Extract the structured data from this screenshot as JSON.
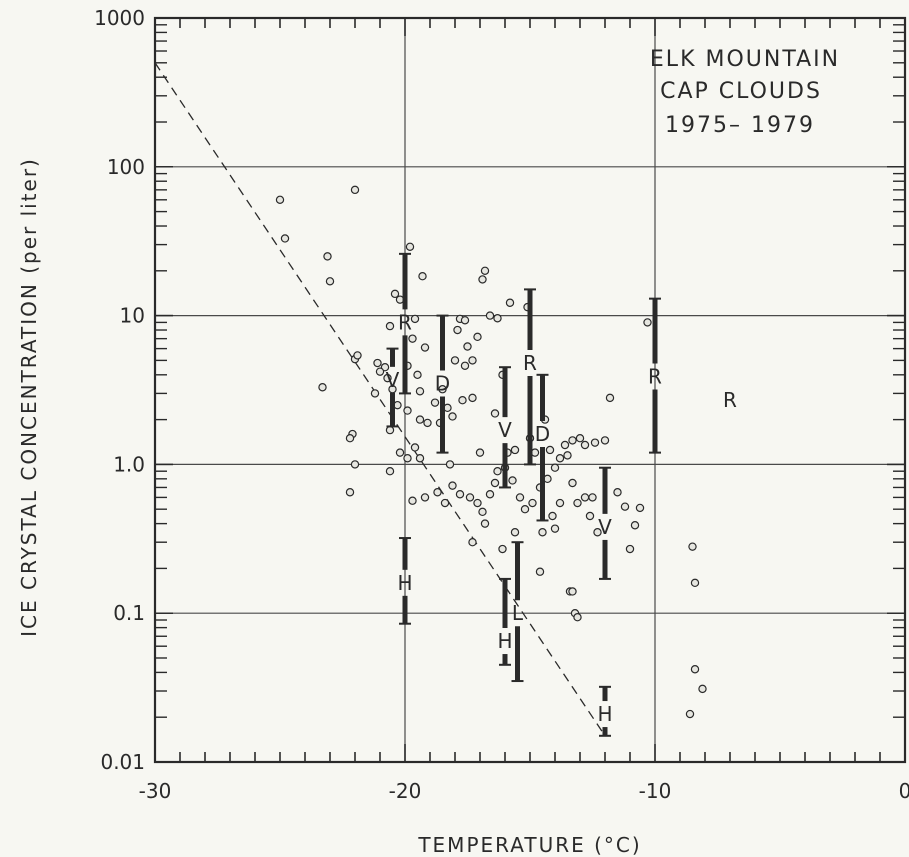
{
  "chart_data": {
    "type": "scatter",
    "annotation_lines": [
      "ELK MOUNTAIN",
      "CAP CLOUDS",
      "1975– 1979"
    ],
    "xlabel": "TEMPERATURE (°C)",
    "ylabel": "ICE CRYSTAL CONCENTRATION (per liter)",
    "xlim": [
      -30,
      0
    ],
    "ylim": [
      0.01,
      1000
    ],
    "yscale": "log",
    "grid": true,
    "x_ticks": [
      -30,
      -20,
      -10,
      0
    ],
    "x_tick_labels": [
      "-30",
      "-20",
      "-10",
      "0"
    ],
    "y_ticks": [
      0.01,
      0.1,
      1,
      10,
      100,
      1000
    ],
    "y_tick_labels": [
      "0.01",
      "0.1",
      "1.0",
      "10",
      "100",
      "1000"
    ],
    "colors": {
      "ink": "#2a2a2a",
      "grid": "#4a4a4a",
      "background": "#f7f7f2"
    },
    "reference_line": {
      "style": "dashed",
      "x": [
        -30,
        -12
      ],
      "y": [
        500,
        0.015
      ]
    },
    "range_bars": [
      {
        "letter": "R",
        "x": -20,
        "low": 3,
        "high": 26,
        "label_y": 9
      },
      {
        "letter": "V",
        "x": -20.5,
        "low": 1.8,
        "high": 6,
        "label_y": 3.7
      },
      {
        "letter": "H",
        "x": -20,
        "low": 0.085,
        "high": 0.32,
        "label_y": 0.16
      },
      {
        "letter": "D",
        "x": -18.5,
        "low": 1.2,
        "high": 10,
        "label_y": 3.5
      },
      {
        "letter": "V",
        "x": -16,
        "low": 0.7,
        "high": 4.5,
        "label_y": 1.7
      },
      {
        "letter": "H",
        "x": -16,
        "low": 0.045,
        "high": 0.17,
        "label_y": 0.065
      },
      {
        "letter": "L",
        "x": -15.5,
        "low": 0.035,
        "high": 0.3,
        "label_y": 0.1
      },
      {
        "letter": "R",
        "x": -15,
        "low": 1,
        "high": 15,
        "label_y": 4.8
      },
      {
        "letter": "D",
        "x": -14.5,
        "low": 0.42,
        "high": 4,
        "label_y": 1.6
      },
      {
        "letter": "V",
        "x": -12,
        "low": 0.17,
        "high": 0.95,
        "label_y": 0.38
      },
      {
        "letter": "H",
        "x": -12,
        "low": 0.015,
        "high": 0.032,
        "label_y": 0.021
      },
      {
        "letter": "R",
        "x": -10,
        "low": 1.2,
        "high": 13,
        "label_y": 3.9
      }
    ],
    "extra_labels": [
      {
        "letter": "R",
        "x": -7,
        "y": 2.7
      }
    ],
    "points": [
      [
        -25,
        60
      ],
      [
        -24.8,
        33
      ],
      [
        -23.1,
        25
      ],
      [
        -23,
        17
      ],
      [
        -22,
        70
      ],
      [
        -22,
        5.1
      ],
      [
        -21.9,
        5.4
      ],
      [
        -22.1,
        1.6
      ],
      [
        -22.2,
        1.5
      ],
      [
        -22,
        1.0
      ],
      [
        -22.2,
        0.65
      ],
      [
        -23.3,
        3.3
      ],
      [
        -20.2,
        12.8
      ],
      [
        -20.4,
        14
      ],
      [
        -20.6,
        8.5
      ],
      [
        -19.8,
        29
      ],
      [
        -19.6,
        9.5
      ],
      [
        -19.3,
        18.4
      ],
      [
        -19.4,
        3.1
      ],
      [
        -19.2,
        6.1
      ],
      [
        -19.7,
        7
      ],
      [
        -19.9,
        4.6
      ],
      [
        -19.5,
        4
      ],
      [
        -20.8,
        4.5
      ],
      [
        -21,
        4.2
      ],
      [
        -21.1,
        4.8
      ],
      [
        -20.7,
        3.8
      ],
      [
        -20.5,
        3.2
      ],
      [
        -21.2,
        3.0
      ],
      [
        -20.3,
        2.5
      ],
      [
        -19.9,
        2.3
      ],
      [
        -19.4,
        2.0
      ],
      [
        -19.1,
        1.9
      ],
      [
        -20.6,
        1.7
      ],
      [
        -20.2,
        1.2
      ],
      [
        -19.9,
        1.1
      ],
      [
        -18.8,
        2.6
      ],
      [
        -18.5,
        3.2
      ],
      [
        -18.1,
        2.1
      ],
      [
        -18,
        5
      ],
      [
        -17.9,
        8
      ],
      [
        -17.8,
        9.5
      ],
      [
        -17.6,
        9.3
      ],
      [
        -17.5,
        6.2
      ],
      [
        -17.6,
        4.6
      ],
      [
        -17.3,
        5
      ],
      [
        -17.1,
        7.2
      ],
      [
        -16.9,
        17.5
      ],
      [
        -16.8,
        20
      ],
      [
        -16.6,
        10
      ],
      [
        -16.3,
        9.6
      ],
      [
        -16.1,
        4
      ],
      [
        -15.8,
        12.2
      ],
      [
        -15.1,
        11.4
      ],
      [
        -18.6,
        1.9
      ],
      [
        -18.3,
        2.4
      ],
      [
        -17.7,
        2.7
      ],
      [
        -17.3,
        2.8
      ],
      [
        -19.6,
        1.3
      ],
      [
        -19.4,
        1.1
      ],
      [
        -20.6,
        0.9
      ],
      [
        -19.7,
        0.57
      ],
      [
        -19.2,
        0.6
      ],
      [
        -18.7,
        0.65
      ],
      [
        -18.4,
        0.55
      ],
      [
        -18.1,
        0.72
      ],
      [
        -17.8,
        0.63
      ],
      [
        -17.4,
        0.6
      ],
      [
        -17.1,
        0.55
      ],
      [
        -16.9,
        0.48
      ],
      [
        -16.6,
        0.63
      ],
      [
        -16.3,
        0.9
      ],
      [
        -16,
        0.95
      ],
      [
        -15.7,
        0.78
      ],
      [
        -15.4,
        0.6
      ],
      [
        -15.2,
        0.5
      ],
      [
        -14.9,
        0.55
      ],
      [
        -14.6,
        0.7
      ],
      [
        -14.3,
        0.8
      ],
      [
        -14,
        0.95
      ],
      [
        -13.8,
        1.1
      ],
      [
        -13.6,
        1.35
      ],
      [
        -13.3,
        1.45
      ],
      [
        -13,
        1.5
      ],
      [
        -12.8,
        1.35
      ],
      [
        -12.4,
        1.4
      ],
      [
        -12,
        1.45
      ],
      [
        -13.3,
        0.75
      ],
      [
        -13.1,
        0.55
      ],
      [
        -12.8,
        0.6
      ],
      [
        -12.6,
        0.45
      ],
      [
        -12.3,
        0.35
      ],
      [
        -14.5,
        0.35
      ],
      [
        -14.1,
        0.45
      ],
      [
        -13.8,
        0.55
      ],
      [
        -15.6,
        0.35
      ],
      [
        -16.1,
        0.27
      ],
      [
        -17.3,
        0.3
      ],
      [
        -16.8,
        0.4
      ],
      [
        -16.4,
        0.75
      ],
      [
        -15.9,
        1.2
      ],
      [
        -15.6,
        1.25
      ],
      [
        -14.8,
        1.2
      ],
      [
        -14.2,
        1.25
      ],
      [
        -13.5,
        1.15
      ],
      [
        -13.4,
        0.14
      ],
      [
        -13.2,
        0.1
      ],
      [
        -13.1,
        0.094
      ],
      [
        -13.3,
        0.14
      ],
      [
        -14.6,
        0.19
      ],
      [
        -14,
        0.37
      ],
      [
        -11.5,
        0.65
      ],
      [
        -11.2,
        0.52
      ],
      [
        -11,
        0.27
      ],
      [
        -10.6,
        0.51
      ],
      [
        -10.8,
        0.39
      ],
      [
        -10.3,
        9
      ],
      [
        -8.5,
        0.28
      ],
      [
        -8.4,
        0.16
      ],
      [
        -8.4,
        0.042
      ],
      [
        -8.1,
        0.031
      ],
      [
        -8.6,
        0.021
      ],
      [
        -11.8,
        2.8
      ],
      [
        -12.5,
        0.6
      ],
      [
        -14.4,
        2
      ],
      [
        -15,
        1.5
      ],
      [
        -16.4,
        2.2
      ],
      [
        -17,
        1.2
      ],
      [
        -18.2,
        1.0
      ]
    ]
  }
}
